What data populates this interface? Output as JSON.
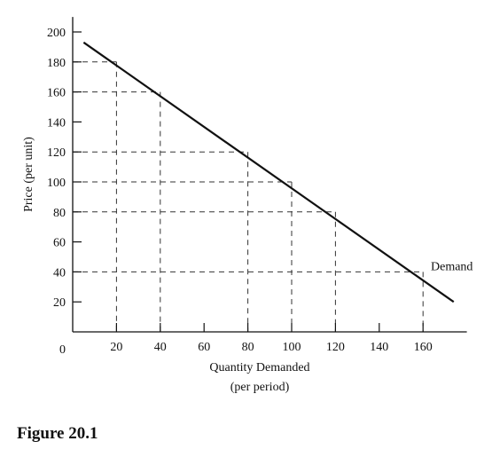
{
  "chart_data": {
    "type": "line",
    "xlabel": "Quantity Demanded",
    "xlabel_sub": "(per period)",
    "ylabel": "Price (per unit)",
    "origin_label": "0",
    "xlim": [
      0,
      180
    ],
    "ylim": [
      0,
      210
    ],
    "x_ticks": [
      20,
      40,
      60,
      80,
      100,
      120,
      140,
      160
    ],
    "y_ticks": [
      20,
      40,
      60,
      80,
      100,
      120,
      140,
      160,
      180,
      200
    ],
    "series": [
      {
        "name": "Demand",
        "x": [
          5,
          174
        ],
        "y": [
          193,
          20
        ]
      }
    ],
    "reference_points": [
      {
        "x": 20,
        "y": 180
      },
      {
        "x": 40,
        "y": 160
      },
      {
        "x": 80,
        "y": 120
      },
      {
        "x": 100,
        "y": 100
      },
      {
        "x": 120,
        "y": 80
      },
      {
        "x": 160,
        "y": 40
      }
    ],
    "line_color": "#111111",
    "guide_color": "#333333"
  },
  "figure_caption": "Figure 20.1"
}
